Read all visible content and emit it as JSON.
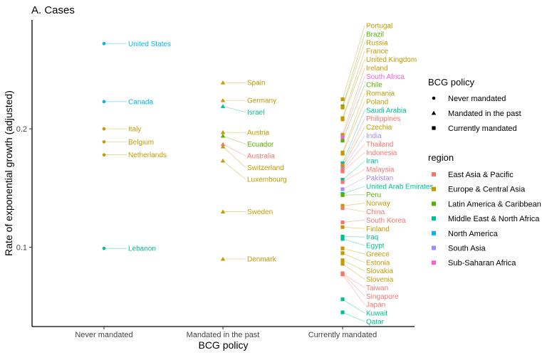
{
  "chart_data": {
    "type": "scatter",
    "title": "A. Cases",
    "xlabel": "BCG policy",
    "ylabel": "Rate of exponential growth (adjusted)",
    "categories": [
      "Never mandated",
      "Mandated in the past",
      "Currently mandated"
    ],
    "ylim": [
      0.033,
      0.292
    ],
    "yticks": [
      0.1,
      0.2
    ],
    "ytick_labels": [
      "0.1",
      "0.2"
    ],
    "grid": false,
    "legend_policy": {
      "title": "BCG policy",
      "items": [
        {
          "label": "Never mandated",
          "shape": "circle"
        },
        {
          "label": "Mandated in the past",
          "shape": "triangle"
        },
        {
          "label": "Currently mandated",
          "shape": "square"
        }
      ]
    },
    "legend_region": {
      "title": "region",
      "items": [
        {
          "label": "East Asia & Pacific",
          "color": "#F8766D"
        },
        {
          "label": "Europe & Central Asia",
          "color": "#C49A00"
        },
        {
          "label": "Latin America & Caribbean",
          "color": "#53B400"
        },
        {
          "label": "Middle East & North Africa",
          "color": "#00C094"
        },
        {
          "label": "North America",
          "color": "#00B6EB"
        },
        {
          "label": "South Asia",
          "color": "#A58AFF"
        },
        {
          "label": "Sub-Saharan Africa",
          "color": "#FB61D7"
        }
      ]
    },
    "points": [
      {
        "country": "United States",
        "policy": "Never mandated",
        "region": "North America",
        "y": 0.272
      },
      {
        "country": "Canada",
        "policy": "Never mandated",
        "region": "North America",
        "y": 0.223
      },
      {
        "country": "Italy",
        "policy": "Never mandated",
        "region": "Europe & Central Asia",
        "y": 0.2
      },
      {
        "country": "Belgium",
        "policy": "Never mandated",
        "region": "Europe & Central Asia",
        "y": 0.189
      },
      {
        "country": "Netherlands",
        "policy": "Never mandated",
        "region": "Europe & Central Asia",
        "y": 0.178
      },
      {
        "country": "Lebanon",
        "policy": "Never mandated",
        "region": "Middle East & North Africa",
        "y": 0.099
      },
      {
        "country": "Spain",
        "policy": "Mandated in the past",
        "region": "Europe & Central Asia",
        "y": 0.239
      },
      {
        "country": "Germany",
        "policy": "Mandated in the past",
        "region": "Europe & Central Asia",
        "y": 0.224
      },
      {
        "country": "Israel",
        "policy": "Mandated in the past",
        "region": "Middle East & North Africa",
        "y": 0.219
      },
      {
        "country": "Austria",
        "policy": "Mandated in the past",
        "region": "Europe & Central Asia",
        "y": 0.197
      },
      {
        "country": "Ecuador",
        "policy": "Mandated in the past",
        "region": "Latin America & Caribbean",
        "y": 0.194
      },
      {
        "country": "Australia",
        "policy": "Mandated in the past",
        "region": "East Asia & Pacific",
        "y": 0.187
      },
      {
        "country": "Switzerland",
        "policy": "Mandated in the past",
        "region": "Europe & Central Asia",
        "y": 0.185
      },
      {
        "country": "Luxembourg",
        "policy": "Mandated in the past",
        "region": "Europe & Central Asia",
        "y": 0.173
      },
      {
        "country": "Sweden",
        "policy": "Mandated in the past",
        "region": "Europe & Central Asia",
        "y": 0.13
      },
      {
        "country": "Denmark",
        "policy": "Mandated in the past",
        "region": "Europe & Central Asia",
        "y": 0.09
      },
      {
        "country": "Portugal",
        "policy": "Currently mandated",
        "region": "Europe & Central Asia",
        "y": 0.225
      },
      {
        "country": "Brazil",
        "policy": "Currently mandated",
        "region": "Latin America & Caribbean",
        "y": 0.219
      },
      {
        "country": "Russia",
        "policy": "Currently mandated",
        "region": "Europe & Central Asia",
        "y": 0.218
      },
      {
        "country": "France",
        "policy": "Currently mandated",
        "region": "Europe & Central Asia",
        "y": 0.209
      },
      {
        "country": "United Kingdom",
        "policy": "Currently mandated",
        "region": "Europe & Central Asia",
        "y": 0.208
      },
      {
        "country": "Ireland",
        "policy": "Currently mandated",
        "region": "Europe & Central Asia",
        "y": 0.195
      },
      {
        "country": "South Africa",
        "policy": "Currently mandated",
        "region": "Sub-Saharan Africa",
        "y": 0.193
      },
      {
        "country": "Chile",
        "policy": "Currently mandated",
        "region": "Latin America & Caribbean",
        "y": 0.19
      },
      {
        "country": "Romania",
        "policy": "Currently mandated",
        "region": "Europe & Central Asia",
        "y": 0.18
      },
      {
        "country": "Poland",
        "policy": "Currently mandated",
        "region": "Europe & Central Asia",
        "y": 0.179
      },
      {
        "country": "Saudi Arabia",
        "policy": "Currently mandated",
        "region": "Middle East & North Africa",
        "y": 0.171
      },
      {
        "country": "Philippines",
        "policy": "Currently mandated",
        "region": "East Asia & Pacific",
        "y": 0.169
      },
      {
        "country": "Czechia",
        "policy": "Currently mandated",
        "region": "Europe & Central Asia",
        "y": 0.168
      },
      {
        "country": "India",
        "policy": "Currently mandated",
        "region": "South Asia",
        "y": 0.166
      },
      {
        "country": "Thailand",
        "policy": "Currently mandated",
        "region": "East Asia & Pacific",
        "y": 0.165
      },
      {
        "country": "Indonesia",
        "policy": "Currently mandated",
        "region": "East Asia & Pacific",
        "y": 0.164
      },
      {
        "country": "Iran",
        "policy": "Currently mandated",
        "region": "Middle East & North Africa",
        "y": 0.157
      },
      {
        "country": "Malaysia",
        "policy": "Currently mandated",
        "region": "East Asia & Pacific",
        "y": 0.155
      },
      {
        "country": "Pakistan",
        "policy": "Currently mandated",
        "region": "South Asia",
        "y": 0.149
      },
      {
        "country": "United Arab Emirates",
        "policy": "Currently mandated",
        "region": "Middle East & North Africa",
        "y": 0.145
      },
      {
        "country": "Peru",
        "policy": "Currently mandated",
        "region": "Latin America & Caribbean",
        "y": 0.144
      },
      {
        "country": "Norway",
        "policy": "Currently mandated",
        "region": "Europe & Central Asia",
        "y": 0.135
      },
      {
        "country": "China",
        "policy": "Currently mandated",
        "region": "East Asia & Pacific",
        "y": 0.133
      },
      {
        "country": "South Korea",
        "policy": "Currently mandated",
        "region": "East Asia & Pacific",
        "y": 0.121
      },
      {
        "country": "Finland",
        "policy": "Currently mandated",
        "region": "Europe & Central Asia",
        "y": 0.117
      },
      {
        "country": "Iraq",
        "policy": "Currently mandated",
        "region": "Middle East & North Africa",
        "y": 0.109
      },
      {
        "country": "Egypt",
        "policy": "Currently mandated",
        "region": "Middle East & North Africa",
        "y": 0.107
      },
      {
        "country": "Greece",
        "policy": "Currently mandated",
        "region": "Europe & Central Asia",
        "y": 0.099
      },
      {
        "country": "Estonia",
        "policy": "Currently mandated",
        "region": "Europe & Central Asia",
        "y": 0.095
      },
      {
        "country": "Slovakia",
        "policy": "Currently mandated",
        "region": "Europe & Central Asia",
        "y": 0.089
      },
      {
        "country": "Slovenia",
        "policy": "Currently mandated",
        "region": "Europe & Central Asia",
        "y": 0.086
      },
      {
        "country": "Taiwan",
        "policy": "Currently mandated",
        "region": "East Asia & Pacific",
        "y": 0.078
      },
      {
        "country": "Singapore",
        "policy": "Currently mandated",
        "region": "East Asia & Pacific",
        "y": 0.078
      },
      {
        "country": "Japan",
        "policy": "Currently mandated",
        "region": "East Asia & Pacific",
        "y": 0.077
      },
      {
        "country": "Kuwait",
        "policy": "Currently mandated",
        "region": "Middle East & North Africa",
        "y": 0.056
      },
      {
        "country": "Qatar",
        "policy": "Currently mandated",
        "region": "Middle East & North Africa",
        "y": 0.045
      }
    ]
  }
}
